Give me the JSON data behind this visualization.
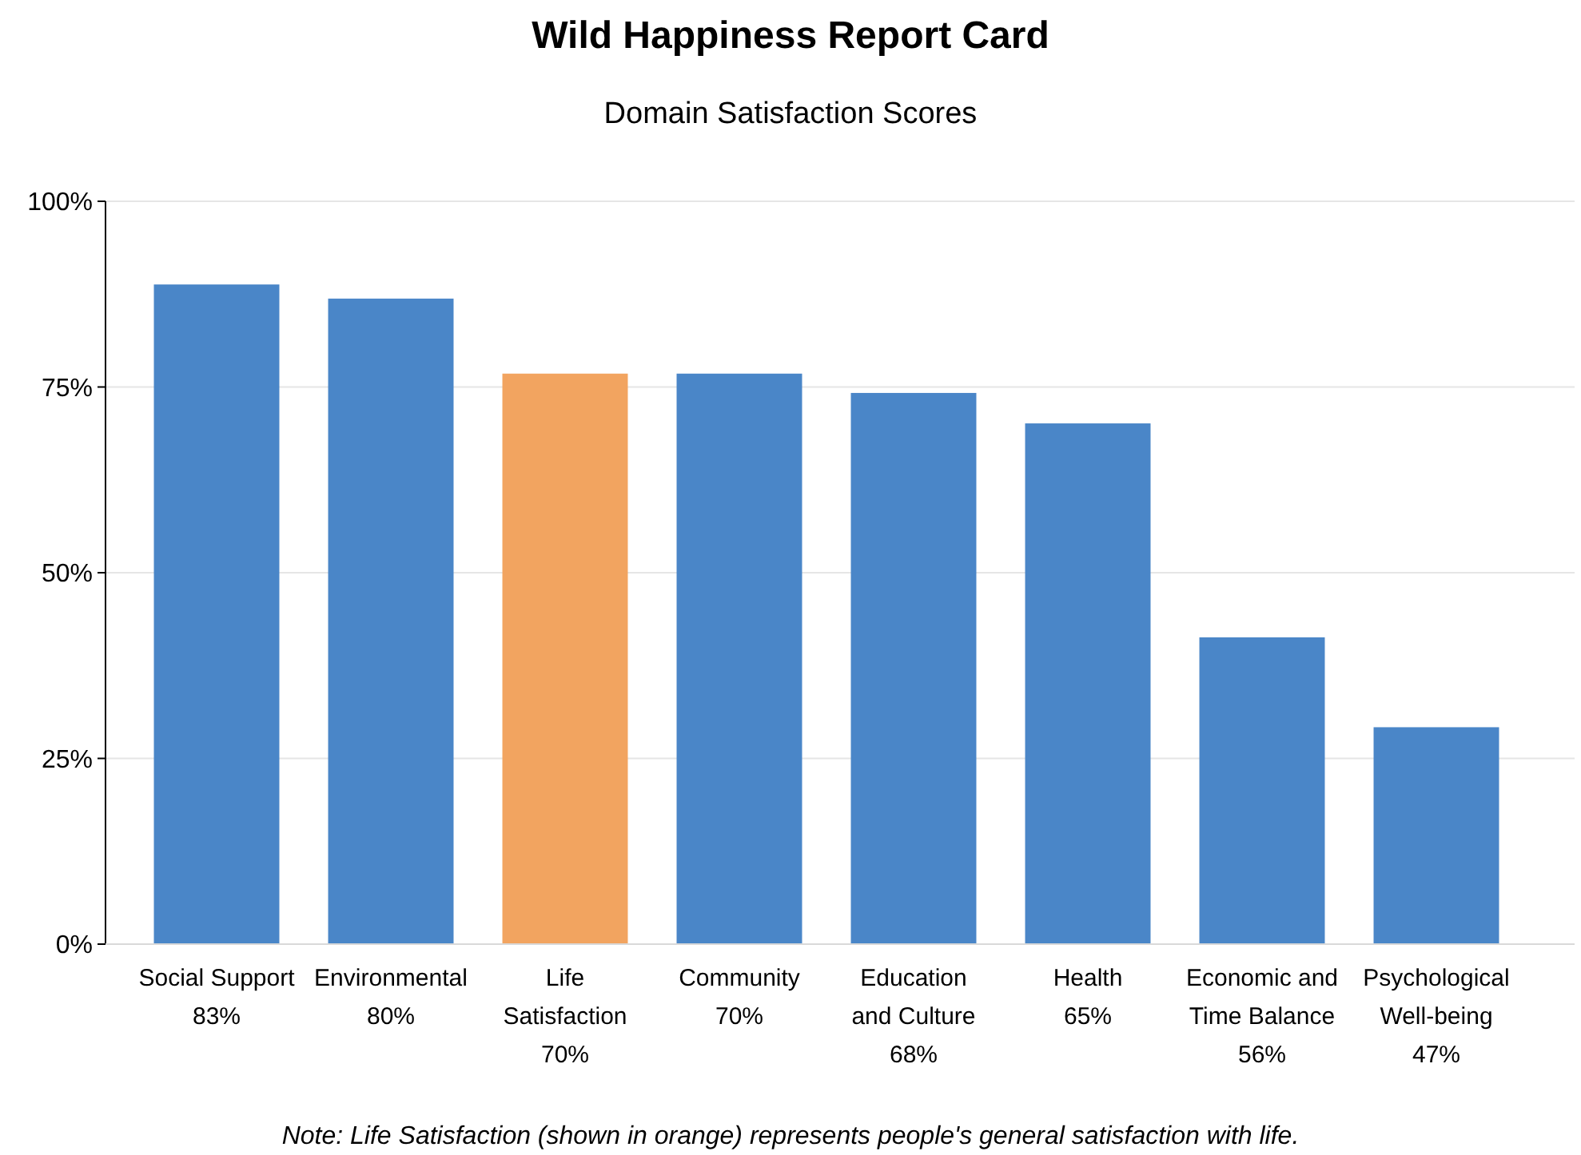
{
  "chart_data": {
    "type": "bar",
    "title": "Wild Happiness Report Card",
    "subtitle": "Domain Satisfaction Scores",
    "categories": [
      "Social Support\n83%",
      "Environmental\n80%",
      "Life\nSatisfaction\n70%",
      "Community\n70%",
      "Education\nand Culture\n68%",
      "Health\n65%",
      "Economic and\nTime Balance\n56%",
      "Psychological\nWell-being\n47%"
    ],
    "values": [
      88.8,
      86.9,
      76.8,
      76.8,
      74.2,
      70.1,
      41.3,
      29.2
    ],
    "colors": [
      "#4a86c8",
      "#4a86c8",
      "#f2a460",
      "#4a86c8",
      "#4a86c8",
      "#4a86c8",
      "#4a86c8",
      "#4a86c8"
    ],
    "ylim": [
      0,
      100
    ],
    "yticks": [
      {
        "value": 0,
        "label": "0%"
      },
      {
        "value": 25,
        "label": "25%"
      },
      {
        "value": 50,
        "label": "50%"
      },
      {
        "value": 75,
        "label": "75%"
      },
      {
        "value": 100,
        "label": "100%"
      }
    ],
    "grid": "y",
    "annotations": [
      "Note: Life Satisfaction (shown in orange) represents people's general satisfaction with life."
    ]
  }
}
